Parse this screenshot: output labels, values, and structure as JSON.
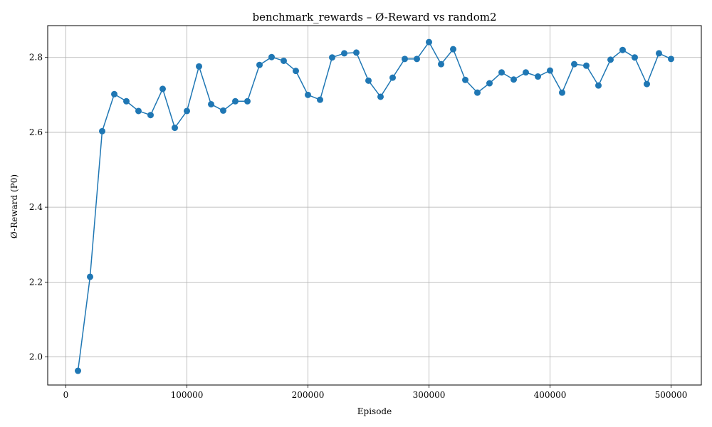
{
  "chart_data": {
    "type": "line",
    "title": "benchmark_rewards – Ø-Reward vs random2",
    "xlabel": "Episode",
    "ylabel": "Ø-Reward (P0)",
    "xlim": [
      -15000,
      525000
    ],
    "ylim": [
      1.925,
      2.885
    ],
    "xticks": [
      0,
      100000,
      200000,
      300000,
      400000,
      500000
    ],
    "xtick_labels": [
      "0",
      "100000",
      "200000",
      "300000",
      "400000",
      "500000"
    ],
    "yticks": [
      2.0,
      2.2,
      2.4,
      2.6,
      2.8
    ],
    "ytick_labels": [
      "2.0",
      "2.2",
      "2.4",
      "2.6",
      "2.8"
    ],
    "grid": true,
    "line_color": "#1f77b4",
    "marker": "circle",
    "series": [
      {
        "x": [
          10000,
          20000,
          30000,
          40000,
          50000,
          60000,
          70000,
          80000,
          90000,
          100000,
          110000,
          120000,
          130000,
          140000,
          150000,
          160000,
          170000,
          180000,
          190000,
          200000,
          210000,
          220000,
          230000,
          240000,
          250000,
          260000,
          270000,
          280000,
          290000,
          300000,
          310000,
          320000,
          330000,
          340000,
          350000,
          360000,
          370000,
          380000,
          390000,
          400000,
          410000,
          420000,
          430000,
          440000,
          450000,
          460000,
          470000,
          480000,
          490000,
          500000
        ],
        "y": [
          1.963,
          2.214,
          2.603,
          2.702,
          2.683,
          2.657,
          2.646,
          2.716,
          2.612,
          2.657,
          2.776,
          2.675,
          2.658,
          2.683,
          2.683,
          2.78,
          2.801,
          2.791,
          2.764,
          2.7,
          2.687,
          2.8,
          2.811,
          2.813,
          2.738,
          2.695,
          2.746,
          2.796,
          2.796,
          2.841,
          2.782,
          2.822,
          2.74,
          2.706,
          2.731,
          2.76,
          2.741,
          2.76,
          2.749,
          2.765,
          2.706,
          2.782,
          2.778,
          2.725,
          2.794,
          2.82,
          2.8,
          2.729,
          2.811,
          2.796
        ]
      }
    ]
  }
}
